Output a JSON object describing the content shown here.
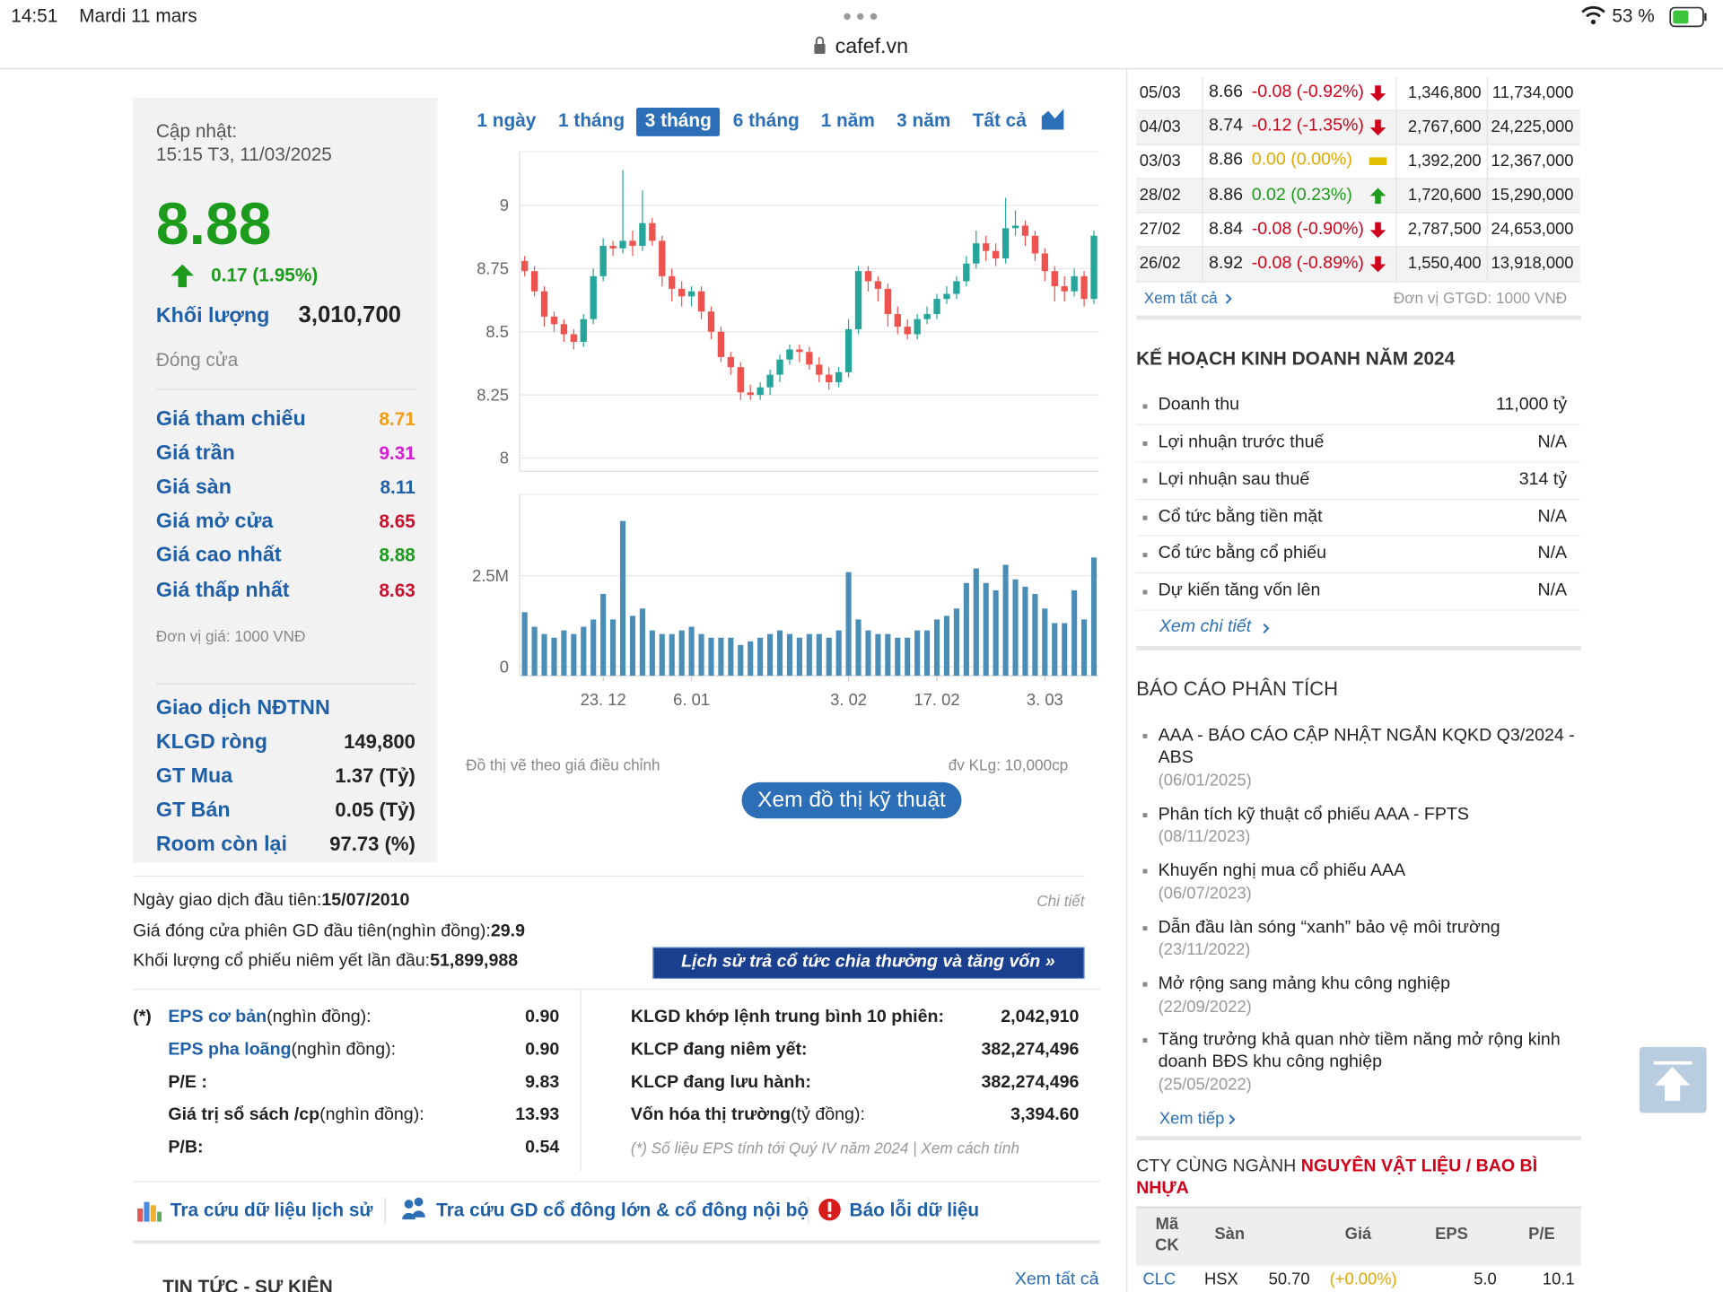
{
  "status_bar": {
    "time": "14:51",
    "date": "Mardi 11 mars",
    "url": "cafef.vn",
    "battery": "53 %"
  },
  "quote": {
    "update_label": "Cập nhật:",
    "update_time": "15:15 T3, 11/03/2025",
    "price": "8.88",
    "change": "0.17 (1.95%)",
    "volume_label": "Khối lượng",
    "volume": "3,010,700",
    "status": "Đóng cửa",
    "prices": [
      {
        "label": "Giá tham chiếu",
        "value": "8.71",
        "color": "#f39c12"
      },
      {
        "label": "Giá trần",
        "value": "9.31",
        "color": "#d81bd8"
      },
      {
        "label": "Giá sàn",
        "value": "8.11",
        "color": "#1f5fa8"
      },
      {
        "label": "Giá mở cửa",
        "value": "8.65",
        "color": "#c8102e"
      },
      {
        "label": "Giá cao nhất",
        "value": "8.88",
        "color": "#1c9b1c"
      },
      {
        "label": "Giá thấp nhất",
        "value": "8.63",
        "color": "#c8102e"
      }
    ],
    "unit": "Đơn vị giá: 1000 VNĐ",
    "foreign_title": "Giao dịch NĐTNN",
    "foreign": [
      [
        "KLGD ròng",
        "149,800"
      ],
      [
        "GT Mua",
        "1.37 (Tỷ)"
      ],
      [
        "GT Bán",
        "0.05 (Tỷ)"
      ],
      [
        "Room còn lại",
        "97.73 (%)"
      ]
    ]
  },
  "chart_data": {
    "type": "candlestick",
    "ranges": [
      "1 ngày",
      "1 tháng",
      "3 tháng",
      "6 tháng",
      "1 năm",
      "3 năm",
      "Tất cả"
    ],
    "active_range": 2,
    "up_color": "#26a69a",
    "down_color": "#ef5350",
    "volume_color": "#4a8db7",
    "ylim": [
      7.965,
      9.213
    ],
    "yticks": [
      8,
      8.25,
      8.5,
      8.75,
      9
    ],
    "volume_ylim": [
      0,
      4730000
    ],
    "volume_ticks": [
      0,
      {
        "value": 2500000,
        "label": "2.5M"
      }
    ],
    "xticks": [
      {
        "value": 8,
        "label": "23. 12"
      },
      {
        "value": 17,
        "label": "6. 01"
      },
      {
        "value": 33,
        "label": "3. 02"
      },
      {
        "value": 42,
        "label": "17. 02"
      },
      {
        "value": 53,
        "label": "3. 03"
      }
    ],
    "ohlc": [
      [
        8.78,
        8.8,
        8.72,
        8.74
      ],
      [
        8.74,
        8.76,
        8.64,
        8.66
      ],
      [
        8.66,
        8.68,
        8.52,
        8.56
      ],
      [
        8.56,
        8.58,
        8.5,
        8.53
      ],
      [
        8.53,
        8.55,
        8.46,
        8.49
      ],
      [
        8.49,
        8.51,
        8.43,
        8.46
      ],
      [
        8.46,
        8.57,
        8.44,
        8.55
      ],
      [
        8.55,
        8.75,
        8.53,
        8.72
      ],
      [
        8.72,
        8.87,
        8.7,
        8.84
      ],
      [
        8.84,
        8.86,
        8.8,
        8.83
      ],
      [
        8.83,
        9.14,
        8.81,
        8.86
      ],
      [
        8.86,
        8.9,
        8.8,
        8.84
      ],
      [
        8.84,
        9.06,
        8.82,
        8.93
      ],
      [
        8.93,
        8.95,
        8.84,
        8.86
      ],
      [
        8.86,
        8.88,
        8.68,
        8.72
      ],
      [
        8.72,
        8.75,
        8.62,
        8.67
      ],
      [
        8.67,
        8.7,
        8.6,
        8.64
      ],
      [
        8.64,
        8.68,
        8.6,
        8.66
      ],
      [
        8.66,
        8.68,
        8.55,
        8.58
      ],
      [
        8.58,
        8.6,
        8.47,
        8.5
      ],
      [
        8.5,
        8.52,
        8.38,
        8.4
      ],
      [
        8.4,
        8.42,
        8.33,
        8.36
      ],
      [
        8.36,
        8.38,
        8.23,
        8.26
      ],
      [
        8.26,
        8.29,
        8.23,
        8.25
      ],
      [
        8.25,
        8.3,
        8.23,
        8.28
      ],
      [
        8.28,
        8.35,
        8.25,
        8.33
      ],
      [
        8.33,
        8.41,
        8.3,
        8.39
      ],
      [
        8.39,
        8.45,
        8.37,
        8.43
      ],
      [
        8.43,
        8.45,
        8.38,
        8.42
      ],
      [
        8.42,
        8.44,
        8.35,
        8.37
      ],
      [
        8.37,
        8.4,
        8.3,
        8.33
      ],
      [
        8.33,
        8.36,
        8.27,
        8.3
      ],
      [
        8.3,
        8.36,
        8.28,
        8.34
      ],
      [
        8.34,
        8.55,
        8.32,
        8.51
      ],
      [
        8.51,
        8.76,
        8.49,
        8.74
      ],
      [
        8.74,
        8.76,
        8.66,
        8.7
      ],
      [
        8.7,
        8.72,
        8.62,
        8.67
      ],
      [
        8.67,
        8.69,
        8.52,
        8.57
      ],
      [
        8.57,
        8.6,
        8.49,
        8.52
      ],
      [
        8.52,
        8.55,
        8.47,
        8.49
      ],
      [
        8.49,
        8.57,
        8.47,
        8.55
      ],
      [
        8.55,
        8.6,
        8.53,
        8.57
      ],
      [
        8.57,
        8.65,
        8.55,
        8.63
      ],
      [
        8.63,
        8.68,
        8.61,
        8.65
      ],
      [
        8.65,
        8.72,
        8.63,
        8.7
      ],
      [
        8.7,
        8.8,
        8.68,
        8.77
      ],
      [
        8.77,
        8.9,
        8.75,
        8.85
      ],
      [
        8.85,
        8.88,
        8.78,
        8.82
      ],
      [
        8.82,
        8.85,
        8.76,
        8.79
      ],
      [
        8.79,
        9.03,
        8.77,
        8.91
      ],
      [
        8.91,
        8.98,
        8.88,
        8.92
      ],
      [
        8.92,
        8.94,
        8.84,
        8.88
      ],
      [
        8.88,
        8.9,
        8.78,
        8.81
      ],
      [
        8.81,
        8.83,
        8.7,
        8.74
      ],
      [
        8.74,
        8.76,
        8.62,
        8.68
      ],
      [
        8.68,
        8.72,
        8.62,
        8.66
      ],
      [
        8.66,
        8.75,
        8.64,
        8.72
      ],
      [
        8.72,
        8.74,
        8.6,
        8.63
      ],
      [
        8.63,
        8.9,
        8.61,
        8.88
      ]
    ],
    "volumes": [
      1500000,
      1100000,
      900000,
      800000,
      1000000,
      900000,
      1100000,
      1300000,
      2000000,
      1300000,
      4000000,
      1400000,
      1600000,
      1000000,
      900000,
      900000,
      1000000,
      1100000,
      900000,
      800000,
      800000,
      800000,
      600000,
      700000,
      800000,
      900000,
      1000000,
      900000,
      800000,
      900000,
      900000,
      800000,
      1000000,
      2600000,
      1300000,
      1000000,
      900000,
      900000,
      800000,
      800000,
      1000000,
      1000000,
      1300000,
      1400000,
      1600000,
      2300000,
      2700000,
      2300000,
      2100000,
      2800000,
      2400000,
      2200000,
      2000000,
      1600000,
      1200000,
      1200000,
      2100000,
      1300000,
      3000000
    ],
    "note_left": "Đồ thị vẽ theo giá điều chỉnh",
    "note_right": "đv KLg: 10,000cp",
    "button": "Xem đồ thị kỹ thuật"
  },
  "listing": {
    "lines": [
      [
        "Ngày giao dịch đầu tiên: ",
        "15/07/2010"
      ],
      [
        "Giá đóng cửa phiên GD đầu tiên(nghìn đồng): ",
        "29.9"
      ],
      [
        "Khối lượng cổ phiếu niêm yết lần đầu: ",
        "51,899,988"
      ]
    ],
    "detail": "Chi tiết",
    "dividend_button": "Lịch sử trả cổ tức chia thưởng và tăng vốn »"
  },
  "stats_left": {
    "marker": "(*)",
    "rows": [
      [
        "EPS cơ bản",
        " (nghìn đồng):",
        "0.90"
      ],
      [
        "EPS pha loãng",
        " (nghìn đồng):",
        "0.90"
      ],
      [
        "P/E :",
        "",
        "9.83"
      ],
      [
        "Giá trị sổ sách /cp",
        " (nghìn đồng):",
        "13.93"
      ],
      [
        "P/B:",
        "",
        "0.54"
      ]
    ]
  },
  "stats_right": {
    "rows": [
      [
        "KLGD khớp lệnh trung bình 10 phiên:",
        "",
        "2,042,910"
      ],
      [
        "KLCP đang niêm yết:",
        "",
        "382,274,496"
      ],
      [
        "KLCP đang lưu hành:",
        "",
        "382,274,496"
      ],
      [
        "Vốn hóa thị trường",
        " (tỷ đồng):",
        "3,394.60"
      ]
    ],
    "footnote": "(*) Số liệu EPS tính tới Quý IV năm 2024 | Xem cách tính"
  },
  "links": [
    "Tra cứu dữ liệu lịch sử",
    "Tra cứu GD cổ đông lớn & cổ đông nội bộ",
    "Báo lỗi dữ liệu"
  ],
  "news": {
    "title": "TIN TỨC - SỰ KIỆN",
    "more": "Xem tất cả"
  },
  "history": {
    "rows": [
      {
        "date": "05/03",
        "price": "8.66",
        "change": "-0.08 (-0.92%)",
        "trend": "down",
        "volume": "1,346,800",
        "value": "11,734,000"
      },
      {
        "date": "04/03",
        "price": "8.74",
        "change": "-0.12 (-1.35%)",
        "trend": "down",
        "volume": "2,767,600",
        "value": "24,225,000"
      },
      {
        "date": "03/03",
        "price": "8.86",
        "change": "0.00 (0.00%)",
        "trend": "flat",
        "volume": "1,392,200",
        "value": "12,367,000"
      },
      {
        "date": "28/02",
        "price": "8.86",
        "change": "0.02 (0.23%)",
        "trend": "up",
        "volume": "1,720,600",
        "value": "15,290,000"
      },
      {
        "date": "27/02",
        "price": "8.84",
        "change": "-0.08 (-0.90%)",
        "trend": "down",
        "volume": "2,787,500",
        "value": "24,653,000"
      },
      {
        "date": "26/02",
        "price": "8.92",
        "change": "-0.08 (-0.89%)",
        "trend": "down",
        "volume": "1,550,400",
        "value": "13,918,000"
      }
    ],
    "more": "Xem tất cả",
    "unit": "Đơn vị GTGD: 1000 VNĐ"
  },
  "plan": {
    "title": "KẾ HOẠCH KINH DOANH NĂM 2024",
    "rows": [
      [
        "Doanh thu",
        "11,000 tỷ"
      ],
      [
        "Lợi nhuận trước thuế",
        "N/A"
      ],
      [
        "Lợi nhuận sau thuế",
        "314 tỷ"
      ],
      [
        "Cổ tức bằng tiền mặt",
        "N/A"
      ],
      [
        "Cổ tức bằng cổ phiếu",
        "N/A"
      ],
      [
        "Dự kiến tăng vốn lên",
        "N/A"
      ]
    ],
    "more": "Xem chi tiết"
  },
  "reports": {
    "title": "BÁO CÁO PHÂN TÍCH",
    "items": [
      {
        "title": "AAA - BÁO CÁO CẬP NHẬT NGẮN KQKD Q3/2024 - ABS",
        "date": "(06/01/2025)"
      },
      {
        "title": "Phân tích kỹ thuật cổ phiếu AAA - FPTS",
        "date": "(08/11/2023)"
      },
      {
        "title": "Khuyến nghị mua cổ phiếu AAA",
        "date": "(06/07/2023)"
      },
      {
        "title": "Dẫn đầu làn sóng “xanh” bảo vệ môi trường",
        "date": "(23/11/2022)"
      },
      {
        "title": "Mở rộng sang mảng khu công nghiệp",
        "date": "(22/09/2022)"
      },
      {
        "title": "Tăng trưởng khả quan nhờ tiềm năng mở rộng kinh doanh BĐS khu công nghiệp",
        "date": "(25/05/2022)"
      }
    ],
    "more": "Xem tiếp"
  },
  "industry": {
    "title": "CTY CÙNG NGÀNH ",
    "sector": "NGUYÊN VẬT LIỆU / BAO BÌ NHỰA",
    "headers": [
      "Mã CK",
      "Sàn",
      "Giá",
      "EPS",
      "P/E"
    ],
    "rows": [
      [
        "CLC",
        "HSX",
        "50.70",
        "(+0.00%)",
        "5.0",
        "10.1"
      ]
    ]
  }
}
